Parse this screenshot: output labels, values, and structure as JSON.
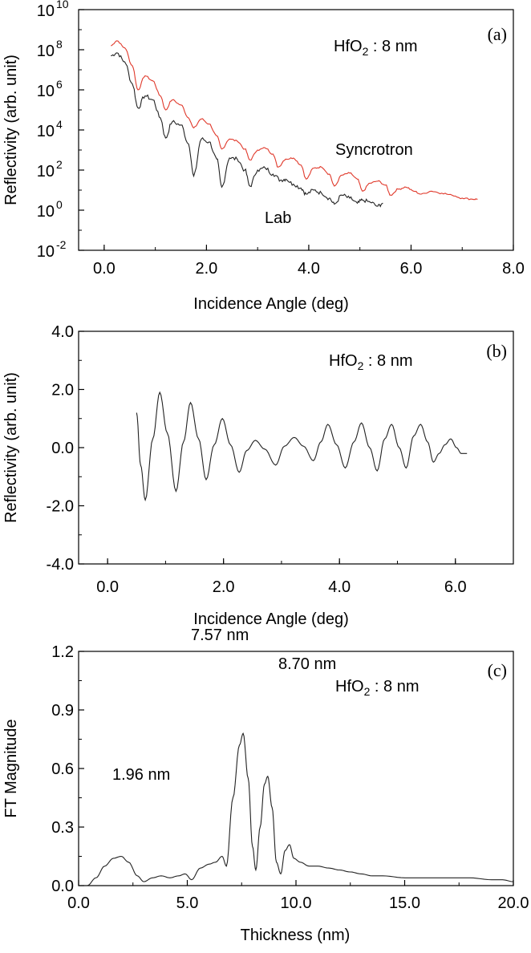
{
  "chart_data": [
    {
      "panel_label": "(a)",
      "type": "line",
      "sample_label": "HfO",
      "sample_sub": "2",
      "sample_value": " : 8 nm",
      "xlabel": "Incidence Angle (deg)",
      "ylabel": "Reflectivity (arb. unit)",
      "xlim": [
        -0.5,
        8.0
      ],
      "ylim_log10": [
        -2,
        10
      ],
      "y_scale": "log",
      "x_ticks": [
        "0.0",
        "2.0",
        "4.0",
        "6.0",
        "8.0"
      ],
      "y_tick_exponents": [
        "-2",
        "0",
        "2",
        "4",
        "6",
        "8",
        "10"
      ],
      "series": [
        {
          "name": "Syncrotron",
          "color": "#e0392b",
          "x": [
            0.13,
            0.25,
            0.4,
            0.55,
            0.66,
            0.8,
            0.95,
            1.1,
            1.2,
            1.33,
            1.5,
            1.65,
            1.75,
            1.9,
            2.05,
            2.2,
            2.3,
            2.45,
            2.6,
            2.75,
            2.85,
            3.0,
            3.15,
            3.3,
            3.4,
            3.55,
            3.7,
            3.85,
            3.95,
            4.1,
            4.25,
            4.4,
            4.5,
            4.65,
            4.8,
            4.95,
            5.05,
            5.2,
            5.35,
            5.5,
            5.6,
            5.75,
            5.9,
            6.05,
            6.2,
            6.4,
            6.6,
            6.8,
            7.0,
            7.2,
            7.3
          ],
          "log10_y": [
            8.2,
            8.45,
            8.1,
            7.2,
            6.0,
            6.7,
            6.45,
            5.7,
            5.0,
            5.5,
            5.25,
            4.6,
            4.1,
            4.55,
            4.3,
            3.7,
            3.05,
            3.55,
            3.45,
            3.05,
            2.5,
            3.0,
            3.1,
            2.8,
            2.15,
            2.55,
            2.6,
            2.25,
            1.55,
            2.1,
            2.15,
            1.8,
            1.2,
            1.75,
            1.85,
            1.55,
            0.95,
            1.35,
            1.45,
            1.25,
            0.75,
            1.05,
            1.15,
            0.95,
            0.8,
            0.95,
            0.85,
            0.75,
            0.6,
            0.55,
            0.55
          ]
        },
        {
          "name": "Lab",
          "color": "#222222",
          "x": [
            0.13,
            0.25,
            0.4,
            0.55,
            0.66,
            0.8,
            0.95,
            1.1,
            1.2,
            1.33,
            1.5,
            1.65,
            1.75,
            1.9,
            2.05,
            2.2,
            2.3,
            2.45,
            2.6,
            2.75,
            2.85,
            3.0,
            3.15,
            3.3,
            3.45,
            3.55,
            3.7,
            3.85,
            3.95,
            4.1,
            4.25,
            4.4,
            4.5,
            4.65,
            4.8,
            4.95,
            5.05,
            5.2,
            5.35,
            5.45
          ],
          "log10_y": [
            7.7,
            7.85,
            7.4,
            6.3,
            5.1,
            5.7,
            5.5,
            4.6,
            3.6,
            4.4,
            4.25,
            3.3,
            1.7,
            3.55,
            3.4,
            2.55,
            1.15,
            2.6,
            2.55,
            2.0,
            1.2,
            2.0,
            2.1,
            1.8,
            1.5,
            1.55,
            1.3,
            1.1,
            0.8,
            1.0,
            0.85,
            0.6,
            0.3,
            0.75,
            0.6,
            0.35,
            0.5,
            0.4,
            0.2,
            0.35
          ]
        }
      ],
      "annotations": [
        "Syncrotron",
        "Lab"
      ]
    },
    {
      "panel_label": "(b)",
      "type": "line",
      "sample_label": "HfO",
      "sample_sub": "2",
      "sample_value": " : 8 nm",
      "xlabel": "Incidence Angle (deg)",
      "ylabel": "Reflectivity (arb. unit)",
      "xlim": [
        -0.5,
        7.0
      ],
      "ylim": [
        -4.0,
        4.0
      ],
      "x_ticks": [
        "0.0",
        "2.0",
        "4.0",
        "6.0"
      ],
      "y_ticks": [
        "-4.0",
        "-2.0",
        "0.0",
        "2.0",
        "4.0"
      ],
      "series": [
        {
          "name": "",
          "color": "#222222",
          "x": [
            0.5,
            0.57,
            0.65,
            0.78,
            0.9,
            1.03,
            1.18,
            1.31,
            1.43,
            1.57,
            1.7,
            1.84,
            1.98,
            2.12,
            2.27,
            2.4,
            2.55,
            2.71,
            2.9,
            3.05,
            3.22,
            3.38,
            3.55,
            3.68,
            3.8,
            3.95,
            4.1,
            4.25,
            4.38,
            4.52,
            4.65,
            4.78,
            4.9,
            5.03,
            5.15,
            5.28,
            5.4,
            5.52,
            5.62,
            5.72,
            5.82,
            5.92,
            6.02,
            6.1,
            6.2
          ],
          "y": [
            1.2,
            -0.6,
            -1.8,
            0.3,
            1.9,
            0.5,
            -1.5,
            0.2,
            1.55,
            0.3,
            -1.1,
            0.1,
            1.0,
            0.1,
            -0.85,
            -0.1,
            0.25,
            -0.05,
            -0.6,
            0.05,
            0.35,
            0.05,
            -0.45,
            0.2,
            0.8,
            0.1,
            -0.7,
            0.2,
            0.85,
            0.0,
            -0.8,
            0.3,
            0.8,
            0.0,
            -0.7,
            0.4,
            0.8,
            0.2,
            -0.5,
            -0.2,
            0.1,
            0.3,
            0.0,
            -0.2,
            -0.2
          ]
        }
      ]
    },
    {
      "panel_label": "(c)",
      "type": "line",
      "sample_label": "HfO",
      "sample_sub": "2",
      "sample_value": " : 8 nm",
      "xlabel": "Thickness (nm)",
      "ylabel": "FT Magnitude",
      "xlim": [
        0.0,
        20.0
      ],
      "ylim": [
        0.0,
        1.2
      ],
      "x_ticks": [
        "0.0",
        "5.0",
        "10.0",
        "15.0",
        "20.0"
      ],
      "y_ticks": [
        "0.0",
        "0.3",
        "0.6",
        "0.9",
        "1.2"
      ],
      "series": [
        {
          "name": "",
          "color": "#222222",
          "x": [
            0.4,
            0.8,
            1.2,
            1.6,
            1.96,
            2.3,
            2.7,
            3.0,
            3.4,
            3.8,
            4.2,
            4.6,
            4.9,
            5.2,
            5.6,
            6.0,
            6.3,
            6.6,
            6.8,
            7.1,
            7.4,
            7.57,
            7.8,
            8.0,
            8.15,
            8.35,
            8.55,
            8.7,
            8.9,
            9.1,
            9.3,
            9.5,
            9.7,
            9.9,
            10.2,
            10.6,
            11.0,
            11.5,
            12.0,
            12.5,
            13.0,
            13.5,
            14.0,
            15.0,
            16.0,
            17.0,
            18.0,
            19.0,
            19.5,
            20.0
          ],
          "y": [
            0.0,
            0.04,
            0.1,
            0.14,
            0.15,
            0.12,
            0.05,
            0.02,
            0.04,
            0.05,
            0.04,
            0.05,
            0.06,
            0.03,
            0.09,
            0.11,
            0.12,
            0.15,
            0.1,
            0.45,
            0.72,
            0.78,
            0.55,
            0.2,
            0.08,
            0.3,
            0.52,
            0.56,
            0.4,
            0.12,
            0.06,
            0.18,
            0.21,
            0.14,
            0.12,
            0.1,
            0.1,
            0.09,
            0.08,
            0.07,
            0.06,
            0.05,
            0.05,
            0.04,
            0.04,
            0.04,
            0.04,
            0.03,
            0.03,
            0.02
          ]
        }
      ],
      "annotations": [
        "7.57 nm",
        "8.70 nm",
        "1.96 nm"
      ]
    }
  ]
}
